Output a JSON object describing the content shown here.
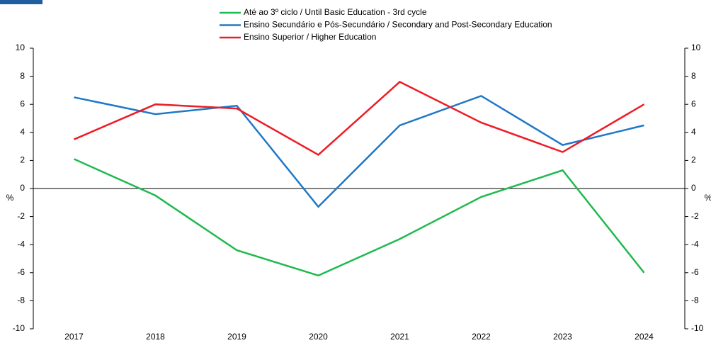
{
  "chart_data": {
    "type": "line",
    "categories": [
      "2017",
      "2018",
      "2019",
      "2020",
      "2021",
      "2022",
      "2023",
      "2024"
    ],
    "series": [
      {
        "name": "Até ao 3º ciclo / Until Basic Education - 3rd cycle",
        "color": "#1fba4f",
        "values": [
          2.1,
          -0.5,
          -4.4,
          -6.2,
          -3.6,
          -0.6,
          1.3,
          -6.0
        ]
      },
      {
        "name": "Ensino Secundário e Pós-Secundário / Secondary and Post-Secondary Education",
        "color": "#1f78c8",
        "values": [
          6.5,
          5.3,
          5.9,
          -1.3,
          4.5,
          6.6,
          3.1,
          4.5
        ]
      },
      {
        "name": "Ensino Superior / Higher Education",
        "color": "#ee1c25",
        "values": [
          3.5,
          6.0,
          5.7,
          2.4,
          7.6,
          4.7,
          2.6,
          6.0
        ]
      }
    ],
    "ylabel": "%",
    "y2label": "%",
    "ylim": [
      -10,
      10
    ],
    "yticks": [
      -10,
      -8,
      -6,
      -4,
      -2,
      0,
      2,
      4,
      6,
      8,
      10
    ],
    "y2lim": [
      -10,
      10
    ],
    "y2ticks": [
      -10,
      -8,
      -6,
      -4,
      -2,
      0,
      2,
      4,
      6,
      8,
      10
    ],
    "legend": "top"
  }
}
